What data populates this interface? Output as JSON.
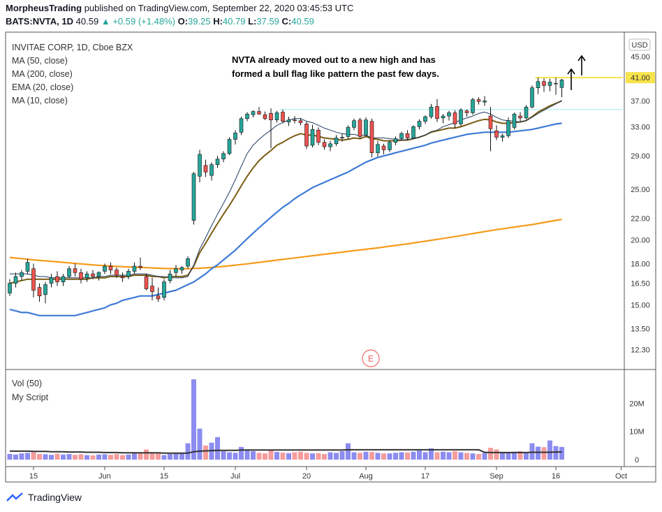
{
  "header": {
    "publisher": "MorpheusTrading",
    "published_text": "published on TradingView.com, September 22, 2020 03:45:53 UTC",
    "symbol": "BATS:NVTA, 1D",
    "last": "40.59",
    "change": "+0.59 (+1.48%)",
    "ohlc": [
      {
        "k": "O:",
        "v": "39.25"
      },
      {
        "k": "H:",
        "v": "40.79"
      },
      {
        "k": "L:",
        "v": "37.59"
      },
      {
        "k": "C:",
        "v": "40.59"
      }
    ]
  },
  "legend": [
    "INVITAE CORP, 1D, Cboe BZX",
    "MA (50, close)",
    "MA (200, close)",
    "EMA (20, close)",
    "MA (10, close)"
  ],
  "volume_legend": [
    "Vol (50)",
    "My Script"
  ],
  "annotation": [
    "NVTA already moved out to a new high and has",
    "formed a bull flag like pattern the past few days."
  ],
  "currency": "USD",
  "earnings_marker": "E",
  "footer": {
    "brand": "TradingView"
  },
  "colors": {
    "up": "#26a69a",
    "down": "#ef5350",
    "ma50": "#3d7ad6",
    "ma200": "#f59b1a",
    "ema20": "#7a5c12",
    "ma10": "#1f3a5f",
    "hline_yellow": "#f7e34b",
    "hline_cyan": "#b2ebf2",
    "vol_up": "#8c8cf0",
    "vol_down": "#f59c9c",
    "vol_avg": "#333333"
  },
  "chart_data": {
    "type": "candlestick",
    "symbol": "NVTA",
    "interval": "1D",
    "y_scale": "log",
    "ylim": [
      11.3,
      50.0
    ],
    "y_ticks": [
      "45.00",
      "41.00",
      "37.00",
      "33.00",
      "29.00",
      "25.00",
      "22.00",
      "20.00",
      "18.00",
      "16.50",
      "15.00",
      "13.50",
      "12.30"
    ],
    "x_labels": [
      {
        "label": "15",
        "bar": 4
      },
      {
        "label": "Jun",
        "bar": 16
      },
      {
        "label": "15",
        "bar": 26
      },
      {
        "label": "Jul",
        "bar": 38
      },
      {
        "label": "20",
        "bar": 50
      },
      {
        "label": "Aug",
        "bar": 60
      },
      {
        "label": "17",
        "bar": 70
      },
      {
        "label": "Sep",
        "bar": 82
      },
      {
        "label": "16",
        "bar": 92
      },
      {
        "label": "Oct",
        "bar": 103
      }
    ],
    "ohlc": [
      [
        15.8,
        16.8,
        15.6,
        16.5
      ],
      [
        16.5,
        17.3,
        16.2,
        17.0
      ],
      [
        17.0,
        17.5,
        16.7,
        17.3
      ],
      [
        17.4,
        18.4,
        17.2,
        18.1
      ],
      [
        17.6,
        18.0,
        15.5,
        16.0
      ],
      [
        16.2,
        16.5,
        15.2,
        15.6
      ],
      [
        15.7,
        16.6,
        15.1,
        16.4
      ],
      [
        16.5,
        17.2,
        16.2,
        16.9
      ],
      [
        17.0,
        17.4,
        16.3,
        16.6
      ],
      [
        16.6,
        17.2,
        16.3,
        17.0
      ],
      [
        17.0,
        17.8,
        16.9,
        17.6
      ],
      [
        17.6,
        18.0,
        17.0,
        17.3
      ],
      [
        17.3,
        17.6,
        16.5,
        16.8
      ],
      [
        16.9,
        17.4,
        16.6,
        17.2
      ],
      [
        17.2,
        17.5,
        16.8,
        17.0
      ],
      [
        17.0,
        17.4,
        16.7,
        17.3
      ],
      [
        17.4,
        18.0,
        17.2,
        17.8
      ],
      [
        17.8,
        18.1,
        17.2,
        17.5
      ],
      [
        17.5,
        17.7,
        16.9,
        17.1
      ],
      [
        17.0,
        17.3,
        16.6,
        16.9
      ],
      [
        17.0,
        17.6,
        16.8,
        17.4
      ],
      [
        17.4,
        18.1,
        17.2,
        17.8
      ],
      [
        17.8,
        18.5,
        17.5,
        17.7
      ],
      [
        17.0,
        17.2,
        16.0,
        16.1
      ],
      [
        16.3,
        16.9,
        15.3,
        15.9
      ],
      [
        15.6,
        16.2,
        15.2,
        15.4
      ],
      [
        15.5,
        16.8,
        15.3,
        16.6
      ],
      [
        16.7,
        17.5,
        16.5,
        17.2
      ],
      [
        17.3,
        17.9,
        17.0,
        17.6
      ],
      [
        17.5,
        17.8,
        17.2,
        17.7
      ],
      [
        17.8,
        18.6,
        17.6,
        18.4
      ],
      [
        21.8,
        27.0,
        21.4,
        26.8
      ],
      [
        26.5,
        29.8,
        25.8,
        29.2
      ],
      [
        27.8,
        28.5,
        26.4,
        27.0
      ],
      [
        26.6,
        28.2,
        26.0,
        27.9
      ],
      [
        27.9,
        29.0,
        27.5,
        28.6
      ],
      [
        28.6,
        29.6,
        28.2,
        29.3
      ],
      [
        29.3,
        31.5,
        29.1,
        31.2
      ],
      [
        31.2,
        32.5,
        30.5,
        32.1
      ],
      [
        32.2,
        34.5,
        31.8,
        34.2
      ],
      [
        34.2,
        35.2,
        33.8,
        34.9
      ],
      [
        34.8,
        35.5,
        34.4,
        35.3
      ],
      [
        35.3,
        36.0,
        34.8,
        34.9
      ],
      [
        34.8,
        35.3,
        34.0,
        34.2
      ],
      [
        35.0,
        35.8,
        30.0,
        34.0
      ],
      [
        34.0,
        35.4,
        33.6,
        35.1
      ],
      [
        35.2,
        35.6,
        33.5,
        33.8
      ],
      [
        33.7,
        34.5,
        33.1,
        34.0
      ],
      [
        34.0,
        34.6,
        33.5,
        33.9
      ],
      [
        33.9,
        34.3,
        33.2,
        33.6
      ],
      [
        33.4,
        33.8,
        29.9,
        30.3
      ],
      [
        30.4,
        33.3,
        30.1,
        32.6
      ],
      [
        32.5,
        32.9,
        30.4,
        30.8
      ],
      [
        30.8,
        31.2,
        29.8,
        30.2
      ],
      [
        30.2,
        31.0,
        29.6,
        30.6
      ],
      [
        30.6,
        31.8,
        30.3,
        31.4
      ],
      [
        31.4,
        32.0,
        30.9,
        31.5
      ],
      [
        31.6,
        33.2,
        31.2,
        32.9
      ],
      [
        32.9,
        34.2,
        32.5,
        33.9
      ],
      [
        34.0,
        34.3,
        31.3,
        31.6
      ],
      [
        31.8,
        34.4,
        31.5,
        34.0
      ],
      [
        33.8,
        34.2,
        28.8,
        29.4
      ],
      [
        29.4,
        31.0,
        28.9,
        30.5
      ],
      [
        30.3,
        30.6,
        29.2,
        29.8
      ],
      [
        29.8,
        31.1,
        29.5,
        30.8
      ],
      [
        30.8,
        31.6,
        30.4,
        31.3
      ],
      [
        31.3,
        32.3,
        31.0,
        32.0
      ],
      [
        32.0,
        32.5,
        31.2,
        31.4
      ],
      [
        31.4,
        33.2,
        31.3,
        33.0
      ],
      [
        33.0,
        34.1,
        32.6,
        33.8
      ],
      [
        33.8,
        34.7,
        33.4,
        34.5
      ],
      [
        34.5,
        36.5,
        34.2,
        36.0
      ],
      [
        36.1,
        37.3,
        33.7,
        34.2
      ],
      [
        34.3,
        34.9,
        33.5,
        34.6
      ],
      [
        34.6,
        35.4,
        33.9,
        35.1
      ],
      [
        35.1,
        35.5,
        32.8,
        33.4
      ],
      [
        33.4,
        35.8,
        33.0,
        35.5
      ],
      [
        35.4,
        35.6,
        34.5,
        35.1
      ],
      [
        35.1,
        37.5,
        34.8,
        37.2
      ],
      [
        37.2,
        37.6,
        36.4,
        36.9
      ],
      [
        36.8,
        37.8,
        36.2,
        37.0
      ],
      [
        34.6,
        36.0,
        29.6,
        32.7
      ],
      [
        32.4,
        33.2,
        31.1,
        31.5
      ],
      [
        31.5,
        32.0,
        30.9,
        31.7
      ],
      [
        31.7,
        34.4,
        31.4,
        33.9
      ],
      [
        32.9,
        35.1,
        32.6,
        34.9
      ],
      [
        34.6,
        35.2,
        33.8,
        34.3
      ],
      [
        34.3,
        36.3,
        34.1,
        36.0
      ],
      [
        36.0,
        39.6,
        35.8,
        39.2
      ],
      [
        39.2,
        41.0,
        38.1,
        40.3
      ],
      [
        40.3,
        40.9,
        38.5,
        39.6
      ],
      [
        39.6,
        40.8,
        38.6,
        40.2
      ],
      [
        40.0,
        41.0,
        38.0,
        40.0
      ],
      [
        39.25,
        40.79,
        37.59,
        40.59
      ]
    ],
    "ma10": [
      17.2,
      17.2,
      17.2,
      17.2,
      17.1,
      17.0,
      17.0,
      16.9,
      16.9,
      16.9,
      16.9,
      16.9,
      16.9,
      16.9,
      16.9,
      17.0,
      17.0,
      17.1,
      17.1,
      17.1,
      17.1,
      17.2,
      17.2,
      17.2,
      17.1,
      17.0,
      17.0,
      16.9,
      16.9,
      16.9,
      17.0,
      17.9,
      19.2,
      20.2,
      21.3,
      22.4,
      23.5,
      24.7,
      26.1,
      27.7,
      29.3,
      30.4,
      31.2,
      31.9,
      32.5,
      33.2,
      33.6,
      34.0,
      34.2,
      34.2,
      33.8,
      33.6,
      33.2,
      32.8,
      32.5,
      32.2,
      32.0,
      31.9,
      31.9,
      31.7,
      31.8,
      31.4,
      31.4,
      31.4,
      31.3,
      31.2,
      31.1,
      31.2,
      31.3,
      31.5,
      31.8,
      32.3,
      32.5,
      33.0,
      33.3,
      33.6,
      34.0,
      34.3,
      34.6,
      35.0,
      35.2,
      34.9,
      34.4,
      34.0,
      33.9,
      33.8,
      33.7,
      33.9,
      34.4,
      35.0,
      35.5,
      36.0,
      36.5,
      37.1
    ],
    "ema20": [
      16.5,
      16.6,
      16.7,
      16.8,
      16.8,
      16.8,
      16.8,
      16.8,
      16.8,
      16.8,
      16.8,
      16.8,
      16.8,
      16.8,
      16.9,
      16.9,
      16.9,
      17.0,
      17.0,
      17.0,
      17.0,
      17.1,
      17.1,
      17.1,
      17.0,
      17.0,
      16.9,
      17.0,
      17.0,
      17.0,
      17.1,
      17.8,
      18.9,
      19.7,
      20.6,
      21.5,
      22.4,
      23.3,
      24.3,
      25.4,
      26.5,
      27.5,
      28.4,
      29.1,
      29.7,
      30.4,
      30.8,
      31.3,
      31.7,
      32.0,
      31.8,
      31.8,
      31.6,
      31.4,
      31.3,
      31.2,
      31.1,
      31.2,
      31.4,
      31.3,
      31.6,
      31.3,
      31.2,
      31.0,
      31.0,
      31.0,
      31.1,
      31.1,
      31.3,
      31.5,
      31.8,
      32.2,
      32.4,
      32.6,
      32.8,
      32.8,
      33.0,
      33.3,
      33.6,
      33.9,
      34.1,
      34.0,
      33.7,
      33.5,
      33.5,
      33.6,
      33.7,
      33.9,
      34.5,
      35.2,
      35.7,
      36.2,
      36.6,
      37.0
    ],
    "ma50": [
      14.7,
      14.6,
      14.5,
      14.5,
      14.4,
      14.3,
      14.3,
      14.3,
      14.3,
      14.3,
      14.3,
      14.3,
      14.4,
      14.5,
      14.6,
      14.7,
      14.8,
      15.0,
      15.1,
      15.3,
      15.4,
      15.5,
      15.6,
      15.6,
      15.6,
      15.7,
      15.8,
      15.9,
      16.0,
      16.2,
      16.4,
      16.6,
      16.9,
      17.2,
      17.6,
      17.9,
      18.3,
      18.7,
      19.1,
      19.6,
      20.1,
      20.6,
      21.1,
      21.6,
      22.1,
      22.6,
      23.1,
      23.5,
      24.0,
      24.4,
      24.8,
      25.2,
      25.5,
      25.8,
      26.1,
      26.4,
      26.7,
      27.0,
      27.4,
      27.8,
      28.2,
      28.5,
      28.8,
      29.0,
      29.2,
      29.4,
      29.6,
      29.8,
      30.0,
      30.2,
      30.4,
      30.7,
      30.9,
      31.1,
      31.3,
      31.5,
      31.7,
      31.9,
      32.0,
      32.1,
      32.2,
      32.2,
      32.2,
      32.2,
      32.2,
      32.3,
      32.4,
      32.5,
      32.6,
      32.8,
      33.0,
      33.2,
      33.4,
      33.5
    ],
    "ma200": [
      18.5,
      18.45,
      18.4,
      18.35,
      18.3,
      18.26,
      18.22,
      18.18,
      18.14,
      18.1,
      18.06,
      18.02,
      17.98,
      17.94,
      17.9,
      17.87,
      17.84,
      17.81,
      17.78,
      17.76,
      17.74,
      17.72,
      17.7,
      17.68,
      17.66,
      17.64,
      17.62,
      17.61,
      17.6,
      17.6,
      17.6,
      17.62,
      17.64,
      17.67,
      17.7,
      17.74,
      17.78,
      17.83,
      17.88,
      17.93,
      17.98,
      18.04,
      18.1,
      18.16,
      18.22,
      18.28,
      18.34,
      18.4,
      18.46,
      18.52,
      18.58,
      18.64,
      18.7,
      18.76,
      18.82,
      18.88,
      18.94,
      19.0,
      19.06,
      19.12,
      19.18,
      19.24,
      19.3,
      19.37,
      19.44,
      19.51,
      19.58,
      19.65,
      19.72,
      19.8,
      19.88,
      19.96,
      20.04,
      20.12,
      20.2,
      20.29,
      20.38,
      20.47,
      20.56,
      20.65,
      20.74,
      20.83,
      20.92,
      21.0,
      21.08,
      21.16,
      21.24,
      21.32,
      21.4,
      21.5,
      21.6,
      21.7,
      21.8,
      21.9
    ],
    "horizontal_lines": [
      {
        "price": 41.0,
        "from_bar": 89,
        "color": "yellow"
      },
      {
        "price": 35.6,
        "from_bar": 46,
        "color": "cyan"
      }
    ],
    "volume": {
      "ylim": [
        0,
        30
      ],
      "unit": "M",
      "y_ticks": [
        {
          "v": 20,
          "label": "20M"
        },
        {
          "v": 10,
          "label": "10M"
        },
        {
          "v": 0,
          "label": "0"
        }
      ],
      "values": [
        2.0,
        1.8,
        2.2,
        2.4,
        2.6,
        2.0,
        1.9,
        1.7,
        2.1,
        1.8,
        2.0,
        1.7,
        1.9,
        1.6,
        1.5,
        1.8,
        1.9,
        1.7,
        2.0,
        1.6,
        1.8,
        2.2,
        2.4,
        3.6,
        2.6,
        2.2,
        1.6,
        2.0,
        2.2,
        2.4,
        5.8,
        28.5,
        11.0,
        5.0,
        6.0,
        8.0,
        3.0,
        2.6,
        2.4,
        4.5,
        3.6,
        3.0,
        2.4,
        2.2,
        3.2,
        2.7,
        2.5,
        2.3,
        2.6,
        2.8,
        2.4,
        2.2,
        2.3,
        2.0,
        2.6,
        2.4,
        3.0,
        5.8,
        2.6,
        2.4,
        2.8,
        2.7,
        2.4,
        2.2,
        2.2,
        2.4,
        2.6,
        2.5,
        2.8,
        3.2,
        2.6,
        4.0,
        2.6,
        2.8,
        2.6,
        3.0,
        2.6,
        2.4,
        2.2,
        2.0,
        2.4,
        4.2,
        3.6,
        2.4,
        2.6,
        2.8,
        3.0,
        2.6,
        5.8,
        4.6,
        4.4,
        6.8,
        4.8,
        4.5
      ],
      "avg": [
        3.0,
        3.0,
        3.0,
        3.0,
        2.9,
        2.9,
        2.9,
        2.8,
        2.8,
        2.8,
        2.7,
        2.7,
        2.7,
        2.6,
        2.6,
        2.6,
        2.5,
        2.5,
        2.5,
        2.4,
        2.4,
        2.4,
        2.4,
        2.4,
        2.4,
        2.4,
        2.3,
        2.3,
        2.3,
        2.3,
        2.3,
        2.8,
        3.0,
        3.1,
        3.2,
        3.3,
        3.3,
        3.3,
        3.3,
        3.4,
        3.4,
        3.4,
        3.4,
        3.4,
        3.4,
        3.4,
        3.4,
        3.4,
        3.4,
        3.4,
        3.4,
        3.4,
        3.4,
        3.4,
        3.4,
        3.4,
        3.4,
        3.5,
        3.5,
        3.5,
        3.5,
        3.5,
        3.5,
        3.5,
        3.5,
        3.5,
        3.5,
        3.5,
        3.5,
        3.5,
        3.5,
        3.5,
        3.5,
        3.5,
        3.5,
        3.5,
        3.5,
        3.5,
        3.5,
        3.5,
        2.6,
        2.5,
        2.5,
        2.5,
        2.5,
        2.5,
        2.5,
        2.5,
        2.6,
        2.6,
        2.6,
        2.6,
        2.7,
        2.7
      ]
    }
  }
}
